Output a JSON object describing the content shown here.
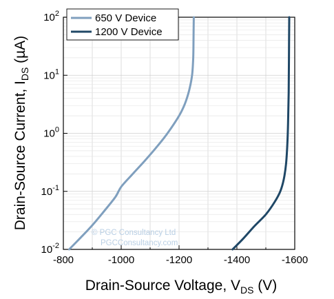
{
  "chart_data": {
    "type": "line",
    "xlabel": "Drain-Source Voltage, V",
    "xlabel_sub": "DS",
    "xlabel_unit": " (V)",
    "ylabel": "Drain-Source Current, I",
    "ylabel_sub": "DS",
    "ylabel_unit": " (µA)",
    "xlim": [
      -800,
      -1600
    ],
    "xticks": [
      -800,
      -1000,
      -1200,
      -1400,
      -1600
    ],
    "xtick_labels": [
      "-800",
      "-1000",
      "-1200",
      "-1400",
      "-1600"
    ],
    "y_scale": "log",
    "ylim": [
      0.01,
      100
    ],
    "yticks": [
      {
        "value": 0.01,
        "base": "10",
        "exp": "-2"
      },
      {
        "value": 0.1,
        "base": "10",
        "exp": "-1"
      },
      {
        "value": 1,
        "base": "10",
        "exp": "0"
      },
      {
        "value": 10,
        "base": "10",
        "exp": "1"
      },
      {
        "value": 100,
        "base": "10",
        "exp": "2"
      }
    ],
    "grid": true,
    "legend_position": "top-left",
    "series": [
      {
        "name": "650 V Device",
        "color": "#7f9fbe",
        "points": [
          [
            -820,
            0.01
          ],
          [
            -860,
            0.016
          ],
          [
            -900,
            0.026
          ],
          [
            -940,
            0.045
          ],
          [
            -980,
            0.08
          ],
          [
            -1000,
            0.12
          ],
          [
            -1040,
            0.2
          ],
          [
            -1080,
            0.33
          ],
          [
            -1120,
            0.56
          ],
          [
            -1160,
            1.0
          ],
          [
            -1200,
            2.0
          ],
          [
            -1220,
            3.2
          ],
          [
            -1235,
            5.5
          ],
          [
            -1245,
            10
          ],
          [
            -1249,
            20
          ],
          [
            -1250,
            40
          ],
          [
            -1251,
            100
          ]
        ]
      },
      {
        "name": "1200 V Device",
        "color": "#1f4766",
        "points": [
          [
            -1385,
            0.01
          ],
          [
            -1420,
            0.015
          ],
          [
            -1460,
            0.025
          ],
          [
            -1500,
            0.04
          ],
          [
            -1530,
            0.065
          ],
          [
            -1550,
            0.1
          ],
          [
            -1562,
            0.16
          ],
          [
            -1570,
            0.3
          ],
          [
            -1574,
            0.6
          ],
          [
            -1577,
            1.5
          ],
          [
            -1579,
            5
          ],
          [
            -1580,
            20
          ],
          [
            -1581,
            100
          ]
        ]
      }
    ]
  },
  "watermark": {
    "line1": "© PGC Consultancy Ltd",
    "line2": "PGCConsultancy.com"
  }
}
